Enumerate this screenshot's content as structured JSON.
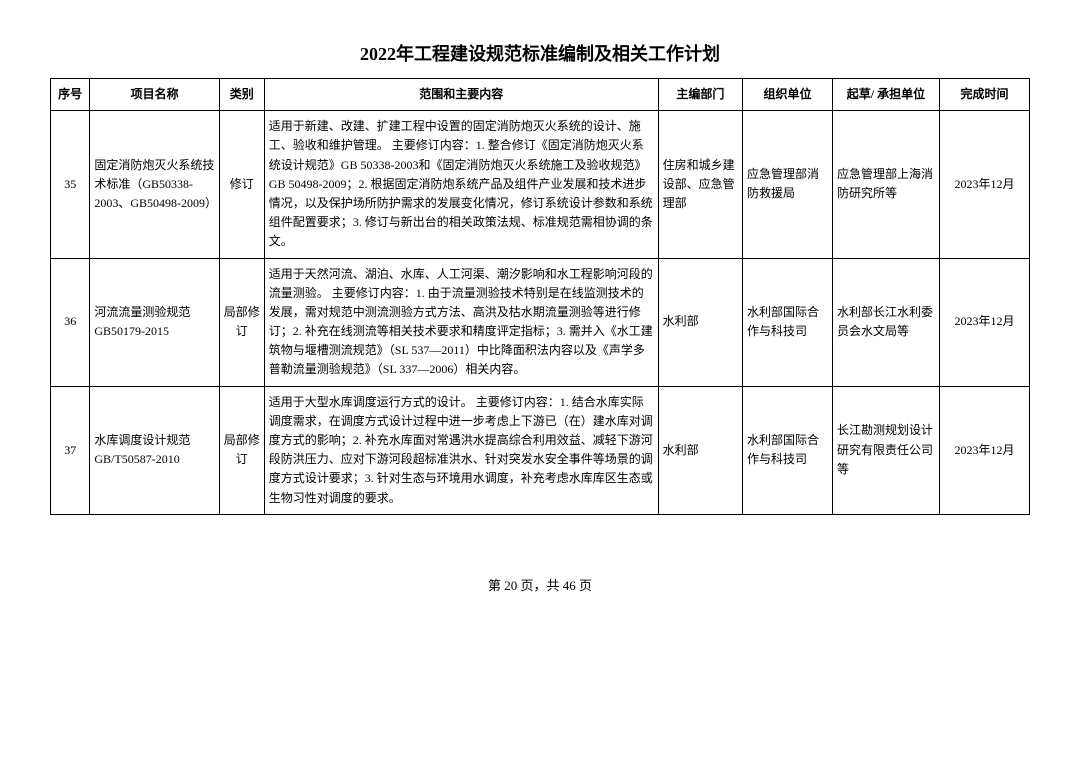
{
  "title": "2022年工程建设规范标准编制及相关工作计划",
  "headers": {
    "num": "序号",
    "name": "项目名称",
    "cat": "类别",
    "scope": "范围和主要内容",
    "dept": "主编部门",
    "org": "组织单位",
    "draft": "起草/\n承担单位",
    "time": "完成时间"
  },
  "rows": [
    {
      "num": "35",
      "name": "固定消防炮灭火系统技术标准（GB50338-2003、GB50498-2009）",
      "cat": "修订",
      "scope": "适用于新建、改建、扩建工程中设置的固定消防炮灭火系统的设计、施工、验收和维护管理。\n主要修订内容：1. 整合修订《固定消防炮灭火系统设计规范》GB 50338-2003和《固定消防炮灭火系统施工及验收规范》GB 50498-2009；2. 根据固定消防炮系统产品及组件产业发展和技术进步情况，以及保护场所防护需求的发展变化情况，修订系统设计参数和系统组件配置要求；3. 修订与新出台的相关政策法规、标准规范需相协调的条文。",
      "dept": "住房和城乡建设部、应急管理部",
      "org": "应急管理部消防救援局",
      "draft": "应急管理部上海消防研究所等",
      "time": "2023年12月"
    },
    {
      "num": "36",
      "name": "河流流量测验规范GB50179-2015",
      "cat": "局部修订",
      "scope": "适用于天然河流、湖泊、水库、人工河渠、潮汐影响和水工程影响河段的流量测验。\n主要修订内容：1. 由于流量测验技术特别是在线监测技术的发展，需对规范中测流测验方式方法、高洪及枯水期流量测验等进行修订；2. 补充在线测流等相关技术要求和精度评定指标；3. 需并入《水工建筑物与堰槽测流规范》（SL 537—2011）中比降面积法内容以及《声学多普勒流量测验规范》（SL 337—2006）相关内容。",
      "dept": "水利部",
      "org": "水利部国际合作与科技司",
      "draft": "水利部长江水利委员会水文局等",
      "time": "2023年12月"
    },
    {
      "num": "37",
      "name": "水库调度设计规范GB/T50587-2010",
      "cat": "局部修订",
      "scope": "适用于大型水库调度运行方式的设计。\n主要修订内容：1. 结合水库实际调度需求，在调度方式设计过程中进一步考虑上下游已（在）建水库对调度方式的影响；2. 补充水库面对常遇洪水提高综合利用效益、减轻下游河段防洪压力、应对下游河段超标准洪水、针对突发水安全事件等场景的调度方式设计要求；3. 针对生态与环境用水调度，补充考虑水库库区生态或生物习性对调度的要求。",
      "dept": "水利部",
      "org": "水利部国际合作与科技司",
      "draft": "长江勘测规划设计研究有限责任公司等",
      "time": "2023年12月"
    }
  ],
  "pager": "第 20 页，共 46 页"
}
